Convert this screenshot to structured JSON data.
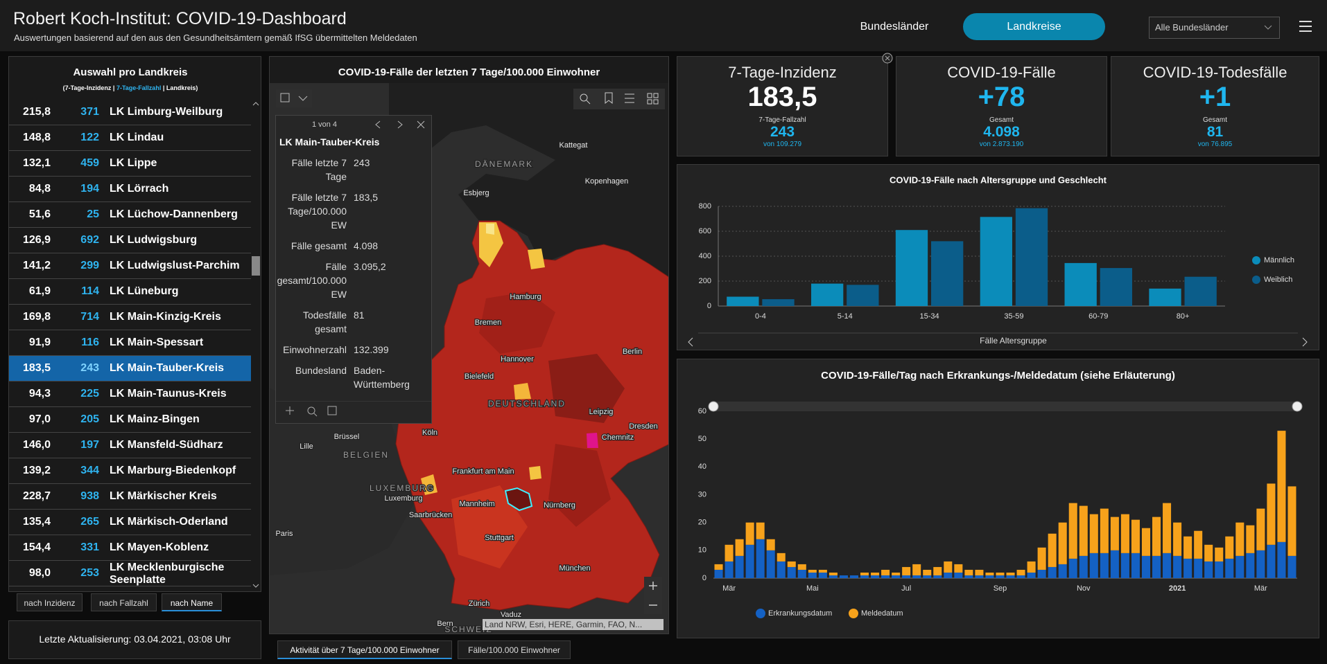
{
  "header": {
    "title": "Robert Koch-Institut: COVID-19-Dashboard",
    "subtitle": "Auswertungen basierend auf den aus den Gesundheitsämtern gemäß IfSG übermittelten Meldedaten",
    "nav": [
      "Bundesländer",
      "Landkreise"
    ],
    "dropdown": "Alle Bundesländer"
  },
  "list": {
    "title": "Auswahl pro Landkreis",
    "legend": [
      "(7-Tage-Inzidenz |",
      "7-Tage-Fallzahl",
      "| Landkreis)"
    ],
    "rows": [
      [
        "215,8",
        "371",
        "LK Limburg-Weilburg"
      ],
      [
        "148,8",
        "122",
        "LK Lindau"
      ],
      [
        "132,1",
        "459",
        "LK Lippe"
      ],
      [
        "84,8",
        "194",
        "LK Lörrach"
      ],
      [
        "51,6",
        "25",
        "LK Lüchow-Dannenberg"
      ],
      [
        "126,9",
        "692",
        "LK Ludwigsburg"
      ],
      [
        "141,2",
        "299",
        "LK Ludwigslust-Parchim"
      ],
      [
        "61,9",
        "114",
        "LK Lüneburg"
      ],
      [
        "169,8",
        "714",
        "LK Main-Kinzig-Kreis"
      ],
      [
        "91,9",
        "116",
        "LK Main-Spessart"
      ],
      [
        "183,5",
        "243",
        "LK Main-Tauber-Kreis"
      ],
      [
        "94,3",
        "225",
        "LK Main-Taunus-Kreis"
      ],
      [
        "97,0",
        "205",
        "LK Mainz-Bingen"
      ],
      [
        "146,0",
        "197",
        "LK Mansfeld-Südharz"
      ],
      [
        "139,2",
        "344",
        "LK Marburg-Biedenkopf"
      ],
      [
        "228,7",
        "938",
        "LK Märkischer Kreis"
      ],
      [
        "135,4",
        "265",
        "LK Märkisch-Oderland"
      ],
      [
        "154,4",
        "331",
        "LK Mayen-Koblenz"
      ],
      [
        "98,0",
        "253",
        "LK Mecklenburgische Seenplatte"
      ]
    ],
    "sort_buttons": [
      "nach Inzidenz",
      "nach Fallzahl",
      "nach Name"
    ],
    "last_update": "Letzte Aktualisierung: 03.04.2021, 03:08 Uhr"
  },
  "map": {
    "title": "COVID-19-Fälle der letzten 7 Tage/100.000 Einwohner",
    "popup": {
      "pager": "1 von 4",
      "name": "LK Main-Tauber-Kreis",
      "fields": [
        [
          "Fälle letzte 7 Tage",
          "243"
        ],
        [
          "Fälle letzte 7 Tage/100.000 EW",
          "183,5"
        ],
        [
          "Fälle gesamt",
          "4.098"
        ],
        [
          "Fälle gesamt/100.000 EW",
          "3.095,2"
        ],
        [
          "Todesfälle gesamt",
          "81"
        ],
        [
          "Einwohnerzahl",
          "132.399"
        ],
        [
          "Bundesland",
          "Baden-Württemberg"
        ]
      ]
    },
    "labels": [
      "Kattegat",
      "DÄNEMARK",
      "Kopenhagen",
      "Esbjerg",
      "Hamburg",
      "Bremen",
      "Berlin",
      "Hannover",
      "Bielefeld",
      "DEUTSCHLAND",
      "Leipzig",
      "Dresden",
      "Chemnitz",
      "Köln",
      "Brüssel",
      "Lille",
      "BELGIEN",
      "Frankfurt am Main",
      "LUXEMBURG",
      "Luxemburg",
      "Mannheim",
      "Nürnberg",
      "Saarbrücken",
      "Paris",
      "Stuttgart",
      "München",
      "Zürich",
      "Vaduz",
      "Bern",
      "SCHWEIZ"
    ],
    "attribution": "Land NRW, Esri, HERE, Garmin, FAO, N...",
    "tabs": [
      "Aktivität über 7 Tage/100.000 Einwohner",
      "Fälle/100.000 Einwohner"
    ]
  },
  "kpis": [
    {
      "title": "7-Tage-Inzidenz",
      "value": "183,5",
      "sub_label": "7-Tage-Fallzahl",
      "sub_value": "243",
      "total": "von 109.279"
    },
    {
      "title": "COVID-19-Fälle",
      "value": "+78",
      "sub_label": "Gesamt",
      "sub_value": "4.098",
      "total": "von 2.873.190"
    },
    {
      "title": "COVID-19-Todesfälle",
      "value": "+1",
      "sub_label": "Gesamt",
      "sub_value": "81",
      "total": "von 76.895"
    }
  ],
  "chart_data": [
    {
      "type": "bar",
      "title": "COVID-19-Fälle nach Altersgruppe und Geschlecht",
      "x_label": "Fälle Altersgruppe",
      "categories": [
        "0-4",
        "5-14",
        "15-34",
        "35-59",
        "60-79",
        "80+"
      ],
      "series": [
        {
          "name": "Männlich",
          "color": "#0b8cba",
          "values": [
            75,
            180,
            610,
            715,
            345,
            140
          ]
        },
        {
          "name": "Weiblich",
          "color": "#0b5d8a",
          "values": [
            55,
            170,
            520,
            785,
            305,
            235
          ]
        }
      ],
      "ylim": [
        0,
        800
      ],
      "yticks": [
        0,
        200,
        400,
        600,
        800
      ],
      "grid": true,
      "legend": "right"
    },
    {
      "type": "bar",
      "stacked": true,
      "title": "COVID-19-Fälle/Tag nach Erkrankungs-/Meldedatum (siehe Erläuterung)",
      "categories": [
        null,
        "Mär",
        null,
        null,
        null,
        null,
        null,
        null,
        null,
        "Mai",
        null,
        null,
        null,
        null,
        null,
        null,
        null,
        null,
        "Jul",
        null,
        null,
        null,
        null,
        null,
        null,
        null,
        null,
        "Sep",
        null,
        null,
        null,
        null,
        null,
        null,
        null,
        "Nov",
        null,
        null,
        null,
        null,
        null,
        null,
        null,
        null,
        "2021",
        null,
        null,
        null,
        null,
        null,
        null,
        null,
        "Mär",
        null,
        null,
        null
      ],
      "series": [
        {
          "name": "Erkrankungsdatum",
          "color": "#1461c4",
          "values": [
            3,
            6,
            8,
            12,
            14,
            10,
            6,
            4,
            3,
            2,
            2,
            1,
            1,
            1,
            1,
            1,
            1,
            1,
            1,
            1,
            1,
            1,
            2,
            2,
            1,
            1,
            1,
            1,
            1,
            1,
            2,
            3,
            4,
            5,
            7,
            8,
            9,
            9,
            10,
            9,
            9,
            8,
            8,
            9,
            8,
            7,
            7,
            6,
            6,
            7,
            8,
            9,
            10,
            12,
            13,
            8
          ]
        },
        {
          "name": "Meldedatum",
          "color": "#f7a21b",
          "values": [
            2,
            6,
            6,
            8,
            6,
            4,
            3,
            2,
            2,
            1,
            1,
            1,
            0,
            0,
            1,
            1,
            2,
            1,
            3,
            4,
            2,
            3,
            4,
            3,
            2,
            2,
            1,
            1,
            1,
            2,
            4,
            8,
            12,
            15,
            20,
            18,
            14,
            16,
            12,
            14,
            12,
            10,
            14,
            18,
            12,
            8,
            10,
            6,
            5,
            8,
            12,
            10,
            15,
            22,
            40,
            25
          ]
        }
      ],
      "ylim": [
        0,
        60
      ],
      "yticks": [
        0,
        10,
        20,
        30,
        40,
        50,
        60
      ],
      "grid": false,
      "legend": "bottom"
    }
  ]
}
